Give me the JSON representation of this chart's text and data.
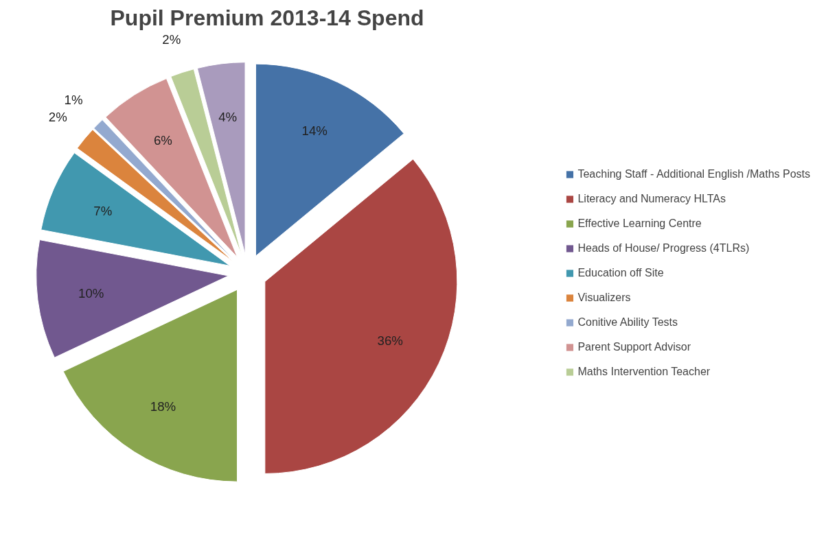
{
  "chart_data": {
    "type": "pie",
    "title": "Pupil Premium 2013-14 Spend",
    "categories": [
      "Teaching Staff - Additional English /Maths Posts",
      "Literacy and Numeracy HLTAs",
      "Effective Learning Centre",
      "Heads of House/ Progress (4TLRs)",
      "Education off Site",
      "Visualizers",
      "Conitive Ability Tests",
      "Parent Support Advisor",
      "Maths Intervention Teacher",
      null
    ],
    "values": [
      14,
      36,
      18,
      10,
      7,
      2,
      1,
      6,
      2,
      4
    ],
    "value_labels": [
      "14%",
      "36%",
      "18%",
      "10%",
      "7%",
      "2%",
      "1%",
      "6%",
      "2%",
      "4%"
    ],
    "colors": [
      "#4572a7",
      "#aa4643",
      "#89a54e",
      "#71588f",
      "#4198af",
      "#db843d",
      "#93a9cf",
      "#d19392",
      "#b9cd96",
      "#a99bbd"
    ],
    "legend": "right"
  }
}
